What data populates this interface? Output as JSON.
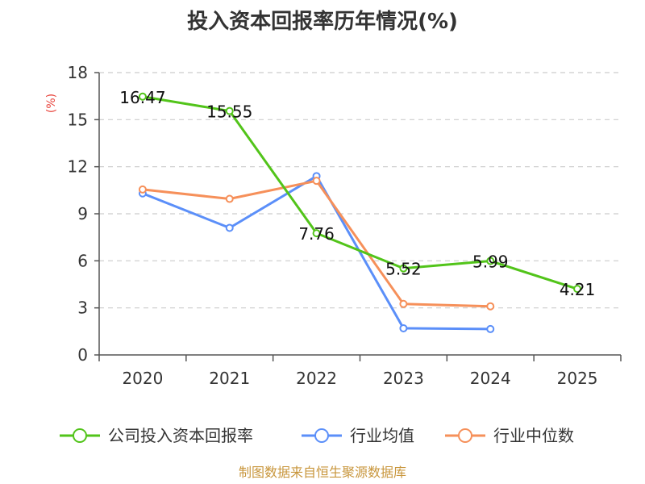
{
  "title": "投入资本回报率历年情况(%)",
  "source": "制图数据来自恒生聚源数据库",
  "chart_data": {
    "type": "line",
    "categories": [
      "2020",
      "2021",
      "2022",
      "2023",
      "2024",
      "2025"
    ],
    "ylabel": "(%)",
    "ylim": [
      0,
      18
    ],
    "yticks": [
      0,
      3,
      6,
      9,
      12,
      15,
      18
    ],
    "grid": true,
    "legend_position": "bottom",
    "series": [
      {
        "name": "公司投入资本回报率",
        "color": "#52c41a",
        "values": [
          16.47,
          15.55,
          7.76,
          5.52,
          5.99,
          4.21
        ],
        "labels": [
          "16.47",
          "15.55",
          "7.76",
          "5.52",
          "5.99",
          "4.21"
        ]
      },
      {
        "name": "行业均值",
        "color": "#5b8ff9",
        "values": [
          10.3,
          8.1,
          11.4,
          1.7,
          1.65,
          null
        ]
      },
      {
        "name": "行业中位数",
        "color": "#f6905a",
        "values": [
          10.55,
          9.95,
          11.1,
          3.25,
          3.1,
          null
        ]
      }
    ]
  },
  "colors": {
    "axis": "#555555",
    "grid": "#cccccc",
    "ylabel": "#e8433b"
  }
}
